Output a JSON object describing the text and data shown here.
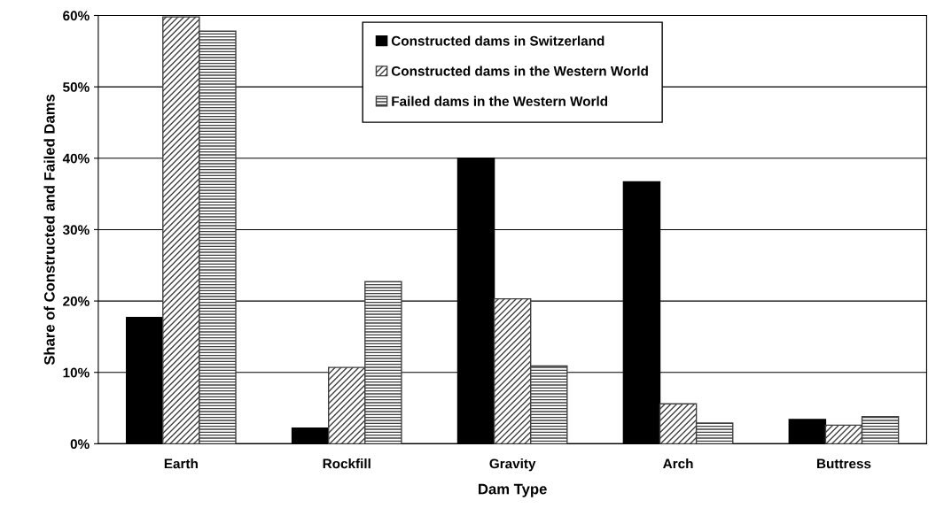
{
  "chart_data": {
    "type": "bar",
    "xlabel": "Dam Type",
    "ylabel": "Share of Constructed and Failed Dams",
    "categories": [
      "Earth",
      "Rockfill",
      "Gravity",
      "Arch",
      "Buttress"
    ],
    "series": [
      {
        "name": "Constructed dams in Switzerland",
        "color": "#000000",
        "values": [
          17.7,
          2.2,
          40.0,
          36.7,
          3.4
        ]
      },
      {
        "name": "Constructed dams in the Western World",
        "color": "#404040",
        "values": [
          59.8,
          10.7,
          20.3,
          5.6,
          2.6
        ]
      },
      {
        "name": "Failed dams in the Western World",
        "color": "#404040",
        "values": [
          57.8,
          22.7,
          10.9,
          2.9,
          3.8
        ]
      }
    ],
    "ylim": [
      0,
      60
    ],
    "yticks": [
      {
        "value": 0,
        "label": "0%"
      },
      {
        "value": 10,
        "label": "10%"
      },
      {
        "value": 20,
        "label": "20%"
      },
      {
        "value": 30,
        "label": "30%"
      },
      {
        "value": 40,
        "label": "40%"
      },
      {
        "value": 50,
        "label": "50%"
      },
      {
        "value": 60,
        "label": "60%"
      }
    ],
    "grid": "y",
    "legend": "top"
  }
}
